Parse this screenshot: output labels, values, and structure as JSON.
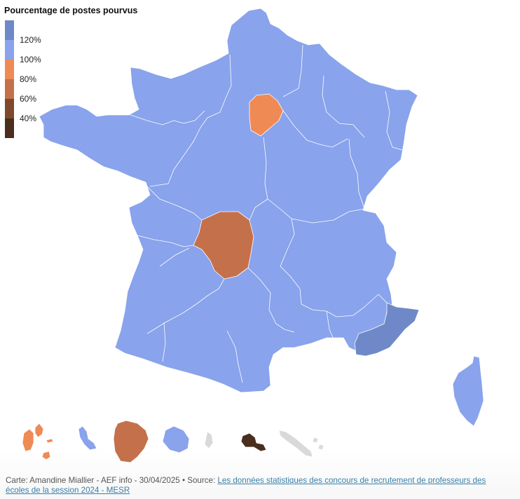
{
  "legend": {
    "title": "Pourcentage de postes pourvus",
    "ticks": [
      "120%",
      "100%",
      "80%",
      "60%",
      "40%"
    ],
    "bins": [
      {
        "color": "#6f89c8"
      },
      {
        "color": "#89a3ec"
      },
      {
        "color": "#ef8a55"
      },
      {
        "color": "#c4714b"
      },
      {
        "color": "#7e4a2b"
      },
      {
        "color": "#4a2e1e"
      }
    ]
  },
  "regions": [
    {
      "name": "France métropolitaine (autres académies)",
      "color": "#89a3ec"
    },
    {
      "name": "Paris",
      "color": "#ef8a55"
    },
    {
      "name": "Limoges",
      "color": "#c4714b"
    },
    {
      "name": "Nice",
      "color": "#6f89c8"
    },
    {
      "name": "Corse",
      "color": "#89a3ec"
    },
    {
      "name": "Guadeloupe",
      "color": "#ef8a55"
    },
    {
      "name": "Martinique",
      "color": "#89a3ec"
    },
    {
      "name": "Guyane",
      "color": "#c4714b"
    },
    {
      "name": "La Réunion",
      "color": "#89a3ec"
    },
    {
      "name": "Mayotte",
      "color": "#d9d9d9"
    },
    {
      "name": "Polynésie française",
      "color": "#4a2e1e"
    },
    {
      "name": "Nouvelle-Calédonie",
      "color": "#d9d9d9"
    }
  ],
  "credits": {
    "prefix": "Carte: Amandine Miallier - AEF info - 30/04/2025 • Source: ",
    "link_text": "Les données statistiques des concours de recrutement de professeurs des écoles de la session 2024 - MESR"
  }
}
